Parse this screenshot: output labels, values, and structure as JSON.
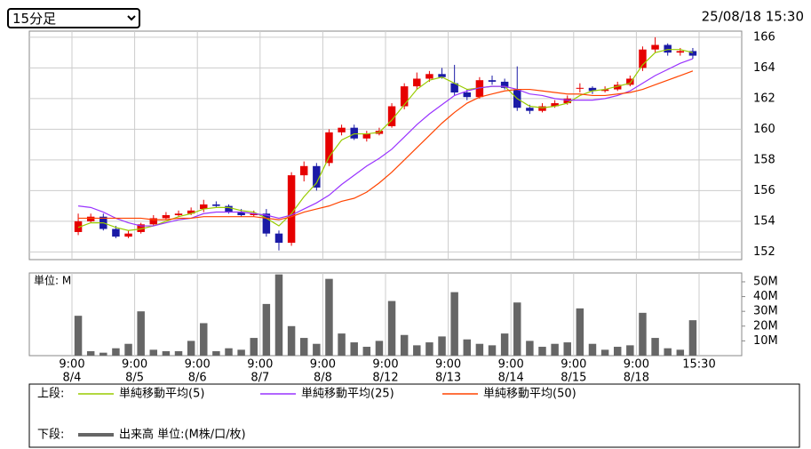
{
  "header": {
    "timeframe": "15分足",
    "timestamp": "25/08/18 15:30"
  },
  "chart_data": {
    "type": "candlestick",
    "x": [
      0,
      0.2,
      0.4,
      0.6,
      0.8,
      1,
      1.2,
      1.4,
      1.6,
      1.8,
      2,
      2.2,
      2.4,
      2.6,
      2.8,
      3,
      3.2,
      3.4,
      3.6,
      3.8,
      4,
      4.2,
      4.4,
      4.6,
      4.8,
      5,
      5.2,
      5.4,
      5.6,
      5.8,
      6,
      6.2,
      6.4,
      6.6,
      6.8,
      7,
      7.2,
      7.4,
      7.6,
      7.8,
      8,
      8.2,
      8.4,
      8.6,
      8.8,
      9,
      9.2,
      9.4,
      9.6,
      9.8
    ],
    "open": [
      153.3,
      154.0,
      154.3,
      153.5,
      153.0,
      153.3,
      153.8,
      154.2,
      154.4,
      154.5,
      154.8,
      155.1,
      155.0,
      154.6,
      154.4,
      154.5,
      153.2,
      152.6,
      157.0,
      157.6,
      157.8,
      159.8,
      160.1,
      159.4,
      159.7,
      160.2,
      161.5,
      162.8,
      163.3,
      163.6,
      163.0,
      162.4,
      162.1,
      163.2,
      163.1,
      162.6,
      161.4,
      161.2,
      161.5,
      161.7,
      162.7,
      162.7,
      162.5,
      162.6,
      162.9,
      164.0,
      165.2,
      165.5,
      165.0,
      165.1
    ],
    "high": [
      154.5,
      154.5,
      154.5,
      153.7,
      153.4,
      153.9,
      154.4,
      154.6,
      154.7,
      154.9,
      155.4,
      155.3,
      155.1,
      154.8,
      154.7,
      154.8,
      153.4,
      157.2,
      157.9,
      157.8,
      160.0,
      160.3,
      160.3,
      159.9,
      160.1,
      161.7,
      163.0,
      163.7,
      163.8,
      164.0,
      164.2,
      162.6,
      163.4,
      163.5,
      163.3,
      164.1,
      161.6,
      161.7,
      161.9,
      162.2,
      163.0,
      162.8,
      162.8,
      163.1,
      163.5,
      165.4,
      166.0,
      165.6,
      165.3,
      165.3
    ],
    "low": [
      153.1,
      153.9,
      153.4,
      152.9,
      152.9,
      153.2,
      153.7,
      154.1,
      154.3,
      154.4,
      154.6,
      154.9,
      154.5,
      154.3,
      154.3,
      153.0,
      152.1,
      152.4,
      156.6,
      156.0,
      157.6,
      159.6,
      159.3,
      159.2,
      159.6,
      160.1,
      161.3,
      162.6,
      163.1,
      163.3,
      162.2,
      161.9,
      162.0,
      162.9,
      162.6,
      161.2,
      161.0,
      161.1,
      161.4,
      161.6,
      162.4,
      162.3,
      162.4,
      162.5,
      162.8,
      163.8,
      165.0,
      164.8,
      164.8,
      164.6
    ],
    "close": [
      154.0,
      154.3,
      153.5,
      153.0,
      153.2,
      153.8,
      154.2,
      154.4,
      154.5,
      154.7,
      155.1,
      155.0,
      154.6,
      154.4,
      154.5,
      153.2,
      152.6,
      157.0,
      157.6,
      156.2,
      159.8,
      160.1,
      159.4,
      159.7,
      159.9,
      161.5,
      162.8,
      163.3,
      163.6,
      163.4,
      162.4,
      162.1,
      163.2,
      163.1,
      162.7,
      161.4,
      161.2,
      161.5,
      161.7,
      162.0,
      162.7,
      162.5,
      162.6,
      162.9,
      163.3,
      165.2,
      165.5,
      165.0,
      165.1,
      164.8
    ],
    "up_color": "#e60000",
    "down_color": "#1a1aa6",
    "series": [
      {
        "name": "単純移動平均(5)",
        "color": "#99cc00",
        "values": [
          153.6,
          153.9,
          153.9,
          153.6,
          153.4,
          153.5,
          153.7,
          154.0,
          154.3,
          154.5,
          154.8,
          154.9,
          154.9,
          154.7,
          154.6,
          154.2,
          153.7,
          154.5,
          155.6,
          156.5,
          158.2,
          159.3,
          159.7,
          159.7,
          159.8,
          160.6,
          161.6,
          162.6,
          163.2,
          163.4,
          163.0,
          162.6,
          162.7,
          162.8,
          162.8,
          162.0,
          161.5,
          161.4,
          161.5,
          161.7,
          162.2,
          162.5,
          162.6,
          162.8,
          163.0,
          164.2,
          165.0,
          165.2,
          165.2,
          165.0
        ]
      },
      {
        "name": "単純移動平均(25)",
        "color": "#9933ff",
        "values": [
          155.0,
          154.9,
          154.6,
          154.2,
          153.9,
          153.7,
          153.7,
          153.9,
          154.1,
          154.2,
          154.5,
          154.6,
          154.6,
          154.6,
          154.5,
          154.4,
          154.2,
          154.4,
          154.8,
          155.2,
          155.7,
          156.4,
          157.0,
          157.6,
          158.1,
          158.7,
          159.5,
          160.3,
          161.0,
          161.6,
          162.2,
          162.5,
          162.7,
          162.8,
          162.8,
          162.6,
          162.3,
          162.2,
          162.0,
          161.9,
          161.9,
          161.9,
          162.0,
          162.2,
          162.5,
          163.0,
          163.5,
          163.9,
          164.3,
          164.6
        ]
      },
      {
        "name": "単純移動平均(50)",
        "color": "#ff4400",
        "values": [
          154.2,
          154.2,
          154.2,
          154.2,
          154.2,
          154.2,
          154.1,
          154.1,
          154.2,
          154.2,
          154.3,
          154.3,
          154.3,
          154.3,
          154.3,
          154.2,
          154.1,
          154.3,
          154.6,
          154.8,
          155.0,
          155.3,
          155.5,
          155.9,
          156.5,
          157.2,
          158.0,
          158.8,
          159.6,
          160.4,
          161.1,
          161.7,
          162.1,
          162.3,
          162.5,
          162.6,
          162.6,
          162.5,
          162.4,
          162.3,
          162.3,
          162.2,
          162.2,
          162.3,
          162.4,
          162.6,
          162.9,
          163.2,
          163.5,
          163.8
        ]
      }
    ],
    "xlim": [
      -0.68,
      10.68
    ],
    "xticks": [
      {
        "value": 0,
        "label": "9:00"
      },
      {
        "value": 1,
        "label": "9:00"
      },
      {
        "value": 2,
        "label": "9:00"
      },
      {
        "value": 3,
        "label": "9:00"
      },
      {
        "value": 4,
        "label": "9:00"
      },
      {
        "value": 5,
        "label": "9:00"
      },
      {
        "value": 6,
        "label": "9:00"
      },
      {
        "value": 7,
        "label": "9:00"
      },
      {
        "value": 8,
        "label": "9:00"
      },
      {
        "value": 9,
        "label": "9:00"
      },
      {
        "value": 10,
        "label": "15:30"
      }
    ],
    "xtick_dates": [
      "8/4",
      "8/5",
      "8/6",
      "8/7",
      "8/8",
      "8/12",
      "8/13",
      "8/14",
      "8/15",
      "8/18",
      null
    ],
    "ylim": [
      151.5,
      166.4
    ],
    "yticks": [
      152,
      154,
      156,
      158,
      160,
      162,
      164,
      166
    ],
    "grid": true,
    "upper_label": "上段:",
    "volume": {
      "name": "出来高 単位:(M株/口/枚)",
      "label": "下段:",
      "unit_label": "単位: M",
      "color": "#666666",
      "values": [
        27,
        3,
        2,
        5,
        8,
        30,
        4,
        3,
        3,
        10,
        22,
        3,
        5,
        4,
        12,
        35,
        55,
        20,
        12,
        8,
        52,
        15,
        9,
        6,
        10,
        37,
        14,
        7,
        9,
        13,
        43,
        11,
        8,
        7,
        15,
        36,
        10,
        6,
        8,
        9,
        32,
        8,
        4,
        6,
        7,
        29,
        12,
        5,
        4,
        24
      ],
      "ylim": [
        0,
        56
      ],
      "yticks": [
        {
          "value": 10,
          "label": "10M"
        },
        {
          "value": 20,
          "label": "20M"
        },
        {
          "value": 30,
          "label": "30M"
        },
        {
          "value": 40,
          "label": "40M"
        },
        {
          "value": 50,
          "label": "50M"
        }
      ]
    }
  }
}
